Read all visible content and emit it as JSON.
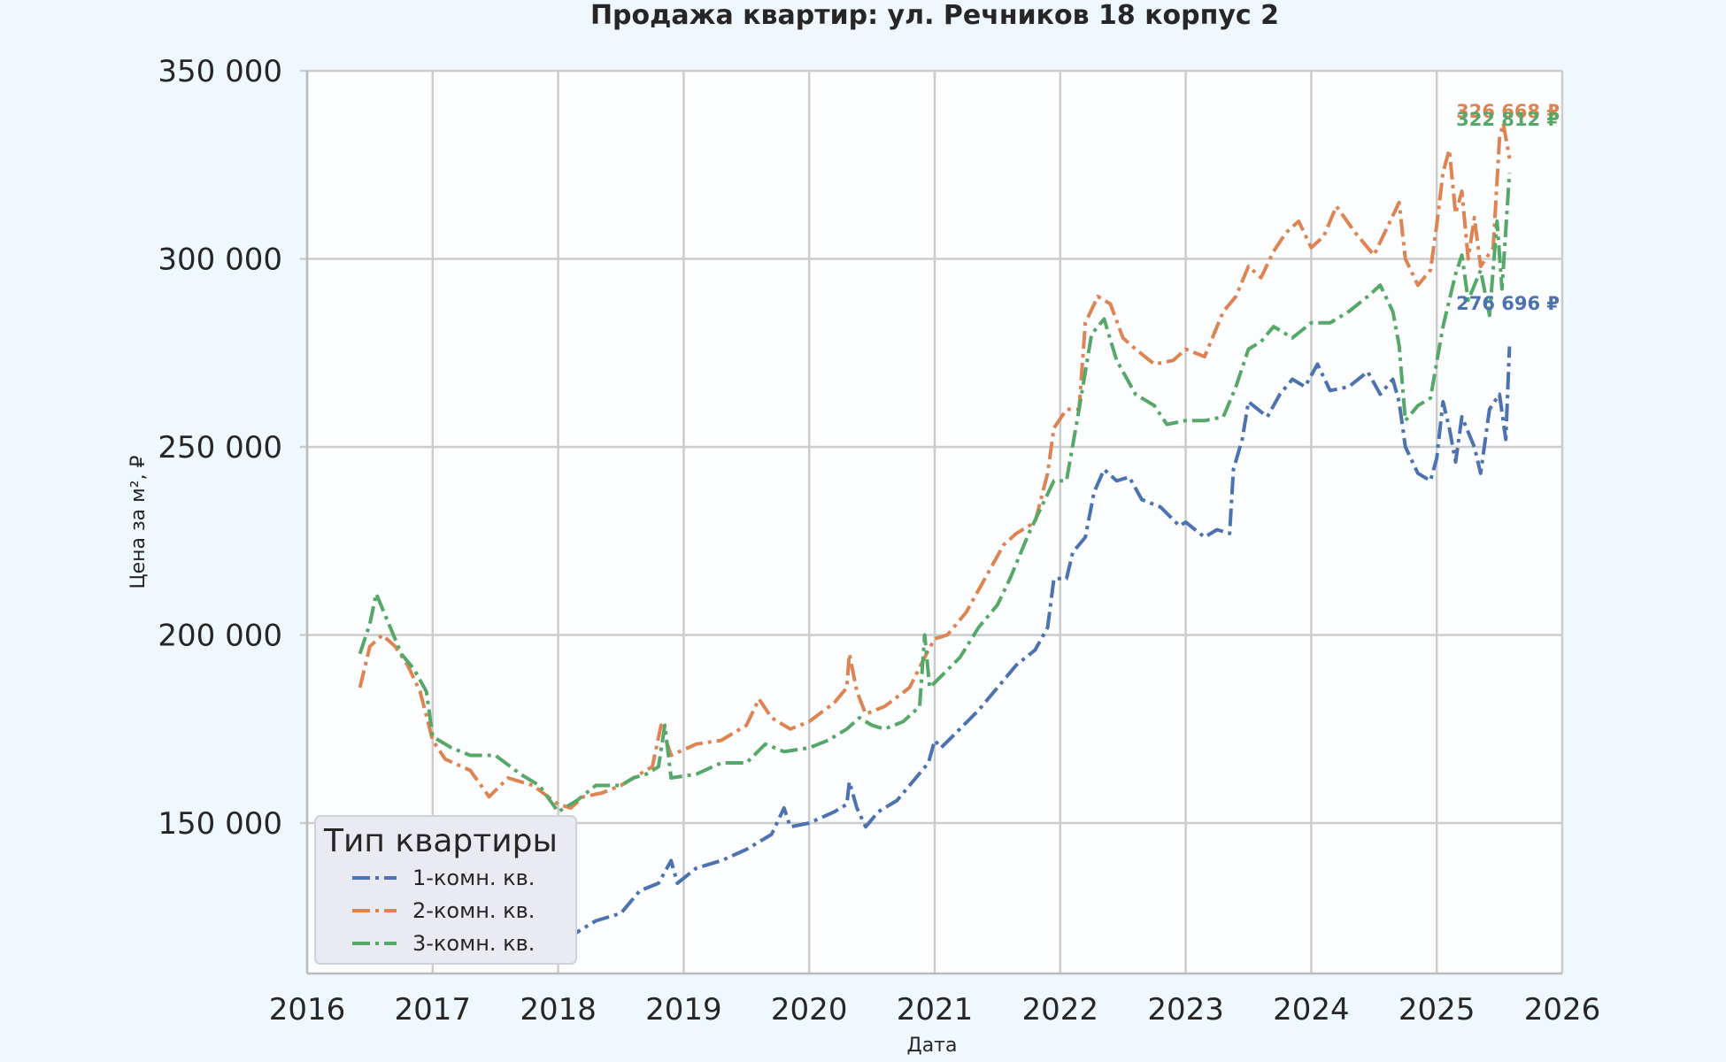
{
  "chart_data": {
    "type": "line",
    "title": "Продажа квартир: ул. Речников 18 корпус 2",
    "xlabel": "Дата",
    "ylabel": "Цена за м², ₽",
    "xlim": [
      2016,
      2026
    ],
    "ylim": [
      110000,
      350000
    ],
    "x_ticks": [
      "2016",
      "2017",
      "2018",
      "2019",
      "2020",
      "2021",
      "2022",
      "2023",
      "2024",
      "2025",
      "2026"
    ],
    "y_ticks": [
      {
        "value": 150000,
        "label": "150 000"
      },
      {
        "value": 200000,
        "label": "200 000"
      },
      {
        "value": 250000,
        "label": "250 000"
      },
      {
        "value": 300000,
        "label": "300 000"
      },
      {
        "value": 350000,
        "label": "350 000"
      }
    ],
    "grid": true,
    "legend": {
      "title": "Тип квартиры",
      "position": "lower-left"
    },
    "series": [
      {
        "name": "1-комн. кв.",
        "color": "#4c72b0",
        "end_label": "276 696 ₽",
        "end_value": 276696,
        "points": [
          [
            2016.42,
            137000
          ],
          [
            2016.6,
            139000
          ],
          [
            2016.8,
            133000
          ],
          [
            2017.0,
            130000
          ],
          [
            2017.3,
            128000
          ],
          [
            2017.6,
            127000
          ],
          [
            2017.85,
            124000
          ],
          [
            2018.0,
            122000
          ],
          [
            2018.1,
            120000
          ],
          [
            2018.3,
            124000
          ],
          [
            2018.5,
            126000
          ],
          [
            2018.65,
            132000
          ],
          [
            2018.8,
            134000
          ],
          [
            2018.9,
            140000
          ],
          [
            2018.95,
            134000
          ],
          [
            2019.1,
            138000
          ],
          [
            2019.3,
            140000
          ],
          [
            2019.5,
            143000
          ],
          [
            2019.7,
            147000
          ],
          [
            2019.8,
            154000
          ],
          [
            2019.85,
            149000
          ],
          [
            2020.0,
            150000
          ],
          [
            2020.2,
            153000
          ],
          [
            2020.3,
            155000
          ],
          [
            2020.32,
            161000
          ],
          [
            2020.38,
            154000
          ],
          [
            2020.45,
            149000
          ],
          [
            2020.55,
            153000
          ],
          [
            2020.7,
            156000
          ],
          [
            2020.8,
            160000
          ],
          [
            2020.95,
            166000
          ],
          [
            2021.0,
            172000
          ],
          [
            2021.05,
            170000
          ],
          [
            2021.2,
            175000
          ],
          [
            2021.35,
            180000
          ],
          [
            2021.5,
            186000
          ],
          [
            2021.65,
            192000
          ],
          [
            2021.8,
            196000
          ],
          [
            2021.9,
            202000
          ],
          [
            2021.95,
            215000
          ],
          [
            2022.05,
            215000
          ],
          [
            2022.1,
            222000
          ],
          [
            2022.2,
            226000
          ],
          [
            2022.27,
            238000
          ],
          [
            2022.35,
            244000
          ],
          [
            2022.45,
            241000
          ],
          [
            2022.55,
            242000
          ],
          [
            2022.65,
            236000
          ],
          [
            2022.8,
            234000
          ],
          [
            2022.95,
            229000
          ],
          [
            2023.0,
            230000
          ],
          [
            2023.15,
            226000
          ],
          [
            2023.25,
            228000
          ],
          [
            2023.35,
            227000
          ],
          [
            2023.38,
            244000
          ],
          [
            2023.45,
            252000
          ],
          [
            2023.5,
            262000
          ],
          [
            2023.65,
            258000
          ],
          [
            2023.75,
            264000
          ],
          [
            2023.85,
            268000
          ],
          [
            2023.95,
            266000
          ],
          [
            2024.05,
            272000
          ],
          [
            2024.15,
            265000
          ],
          [
            2024.3,
            266000
          ],
          [
            2024.45,
            270000
          ],
          [
            2024.55,
            264000
          ],
          [
            2024.65,
            268000
          ],
          [
            2024.7,
            262000
          ],
          [
            2024.75,
            250000
          ],
          [
            2024.85,
            243000
          ],
          [
            2024.95,
            241000
          ],
          [
            2025.0,
            247000
          ],
          [
            2025.05,
            262000
          ],
          [
            2025.1,
            255000
          ],
          [
            2025.15,
            246000
          ],
          [
            2025.2,
            258000
          ],
          [
            2025.3,
            250000
          ],
          [
            2025.35,
            243000
          ],
          [
            2025.42,
            260000
          ],
          [
            2025.5,
            264000
          ],
          [
            2025.55,
            252000
          ],
          [
            2025.58,
            276696
          ]
        ]
      },
      {
        "name": "2-комн. кв.",
        "color": "#dd8452",
        "end_label": "326 668 ₽",
        "end_value": 326668,
        "points": [
          [
            2016.42,
            186000
          ],
          [
            2016.5,
            197000
          ],
          [
            2016.6,
            200000
          ],
          [
            2016.7,
            197000
          ],
          [
            2016.8,
            192000
          ],
          [
            2016.9,
            185000
          ],
          [
            2017.0,
            172000
          ],
          [
            2017.1,
            167000
          ],
          [
            2017.3,
            164000
          ],
          [
            2017.45,
            157000
          ],
          [
            2017.6,
            162000
          ],
          [
            2017.8,
            160000
          ],
          [
            2018.0,
            155000
          ],
          [
            2018.1,
            154000
          ],
          [
            2018.2,
            157000
          ],
          [
            2018.35,
            158000
          ],
          [
            2018.5,
            160000
          ],
          [
            2018.6,
            162000
          ],
          [
            2018.75,
            165000
          ],
          [
            2018.82,
            176000
          ],
          [
            2018.9,
            168000
          ],
          [
            2019.1,
            171000
          ],
          [
            2019.3,
            172000
          ],
          [
            2019.5,
            176000
          ],
          [
            2019.6,
            183000
          ],
          [
            2019.7,
            178000
          ],
          [
            2019.85,
            175000
          ],
          [
            2020.0,
            177000
          ],
          [
            2020.2,
            182000
          ],
          [
            2020.3,
            186000
          ],
          [
            2020.32,
            195000
          ],
          [
            2020.38,
            185000
          ],
          [
            2020.45,
            179000
          ],
          [
            2020.6,
            181000
          ],
          [
            2020.8,
            186000
          ],
          [
            2020.95,
            196000
          ],
          [
            2021.0,
            199000
          ],
          [
            2021.1,
            200000
          ],
          [
            2021.25,
            206000
          ],
          [
            2021.4,
            215000
          ],
          [
            2021.55,
            224000
          ],
          [
            2021.65,
            227000
          ],
          [
            2021.8,
            230000
          ],
          [
            2021.9,
            243000
          ],
          [
            2021.95,
            255000
          ],
          [
            2022.05,
            260000
          ],
          [
            2022.15,
            260000
          ],
          [
            2022.2,
            283000
          ],
          [
            2022.3,
            290000
          ],
          [
            2022.4,
            288000
          ],
          [
            2022.5,
            279000
          ],
          [
            2022.6,
            276000
          ],
          [
            2022.75,
            272000
          ],
          [
            2022.9,
            273000
          ],
          [
            2023.0,
            276000
          ],
          [
            2023.15,
            274000
          ],
          [
            2023.3,
            286000
          ],
          [
            2023.4,
            290000
          ],
          [
            2023.5,
            298000
          ],
          [
            2023.6,
            295000
          ],
          [
            2023.7,
            302000
          ],
          [
            2023.8,
            307000
          ],
          [
            2023.9,
            310000
          ],
          [
            2024.0,
            303000
          ],
          [
            2024.1,
            306000
          ],
          [
            2024.2,
            314000
          ],
          [
            2024.35,
            307000
          ],
          [
            2024.5,
            301000
          ],
          [
            2024.6,
            308000
          ],
          [
            2024.7,
            315000
          ],
          [
            2024.75,
            300000
          ],
          [
            2024.85,
            293000
          ],
          [
            2024.95,
            297000
          ],
          [
            2025.0,
            309000
          ],
          [
            2025.05,
            323000
          ],
          [
            2025.1,
            329000
          ],
          [
            2025.15,
            312000
          ],
          [
            2025.2,
            318000
          ],
          [
            2025.25,
            300000
          ],
          [
            2025.3,
            311000
          ],
          [
            2025.35,
            298000
          ],
          [
            2025.45,
            303000
          ],
          [
            2025.5,
            332000
          ],
          [
            2025.53,
            336000
          ],
          [
            2025.58,
            326668
          ]
        ]
      },
      {
        "name": "3-комн. кв.",
        "color": "#55a868",
        "end_label": "322 812 ₽",
        "end_value": 322812,
        "points": [
          [
            2016.42,
            195000
          ],
          [
            2016.5,
            203000
          ],
          [
            2016.55,
            211000
          ],
          [
            2016.65,
            203000
          ],
          [
            2016.75,
            195000
          ],
          [
            2016.85,
            191000
          ],
          [
            2016.95,
            185000
          ],
          [
            2017.0,
            173000
          ],
          [
            2017.15,
            170000
          ],
          [
            2017.3,
            168000
          ],
          [
            2017.5,
            168000
          ],
          [
            2017.7,
            163000
          ],
          [
            2017.85,
            160000
          ],
          [
            2018.0,
            153000
          ],
          [
            2018.15,
            156000
          ],
          [
            2018.3,
            160000
          ],
          [
            2018.5,
            160000
          ],
          [
            2018.6,
            162000
          ],
          [
            2018.7,
            163000
          ],
          [
            2018.8,
            165000
          ],
          [
            2018.85,
            176000
          ],
          [
            2018.9,
            162000
          ],
          [
            2019.1,
            163000
          ],
          [
            2019.3,
            166000
          ],
          [
            2019.5,
            166000
          ],
          [
            2019.65,
            171000
          ],
          [
            2019.8,
            169000
          ],
          [
            2020.0,
            170000
          ],
          [
            2020.15,
            172000
          ],
          [
            2020.3,
            175000
          ],
          [
            2020.4,
            178000
          ],
          [
            2020.5,
            176000
          ],
          [
            2020.6,
            175000
          ],
          [
            2020.75,
            177000
          ],
          [
            2020.88,
            181000
          ],
          [
            2020.92,
            200000
          ],
          [
            2020.96,
            186000
          ],
          [
            2021.05,
            189000
          ],
          [
            2021.2,
            194000
          ],
          [
            2021.35,
            202000
          ],
          [
            2021.5,
            208000
          ],
          [
            2021.6,
            215000
          ],
          [
            2021.75,
            227000
          ],
          [
            2021.85,
            234000
          ],
          [
            2021.95,
            241000
          ],
          [
            2022.05,
            241000
          ],
          [
            2022.15,
            260000
          ],
          [
            2022.25,
            280000
          ],
          [
            2022.35,
            284000
          ],
          [
            2022.45,
            273000
          ],
          [
            2022.6,
            264000
          ],
          [
            2022.75,
            261000
          ],
          [
            2022.85,
            256000
          ],
          [
            2023.0,
            257000
          ],
          [
            2023.15,
            257000
          ],
          [
            2023.3,
            258000
          ],
          [
            2023.4,
            266000
          ],
          [
            2023.5,
            276000
          ],
          [
            2023.6,
            278000
          ],
          [
            2023.7,
            282000
          ],
          [
            2023.85,
            279000
          ],
          [
            2024.0,
            283000
          ],
          [
            2024.15,
            283000
          ],
          [
            2024.3,
            286000
          ],
          [
            2024.45,
            290000
          ],
          [
            2024.55,
            293000
          ],
          [
            2024.65,
            286000
          ],
          [
            2024.7,
            277000
          ],
          [
            2024.75,
            257000
          ],
          [
            2024.85,
            261000
          ],
          [
            2024.95,
            263000
          ],
          [
            2025.05,
            282000
          ],
          [
            2025.15,
            296000
          ],
          [
            2025.2,
            301000
          ],
          [
            2025.25,
            289000
          ],
          [
            2025.35,
            297000
          ],
          [
            2025.42,
            285000
          ],
          [
            2025.48,
            310000
          ],
          [
            2025.52,
            292000
          ],
          [
            2025.58,
            322812
          ]
        ]
      }
    ]
  }
}
